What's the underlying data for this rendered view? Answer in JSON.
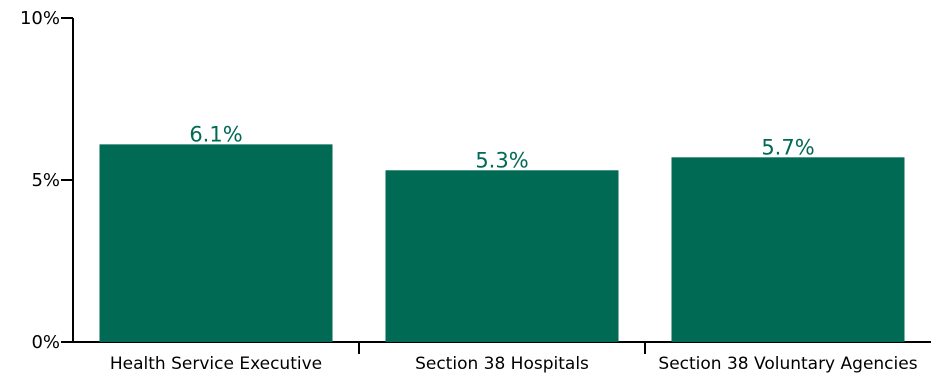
{
  "chart_data": {
    "type": "bar",
    "categories": [
      "Health Service Executive",
      "Section 38 Hospitals",
      "Section 38 Voluntary Agencies"
    ],
    "values": [
      6.1,
      5.3,
      5.7
    ],
    "data_labels": [
      "6.1%",
      "5.3%",
      "5.7%"
    ],
    "ylim": [
      0,
      10
    ],
    "yticks": [
      0,
      5,
      10
    ],
    "ytick_labels": [
      "0%",
      "5%",
      "10%"
    ],
    "grid": false,
    "legend": false,
    "bar_color": "#006a55",
    "label_color": "#006a55",
    "axis_color": "#000000"
  }
}
